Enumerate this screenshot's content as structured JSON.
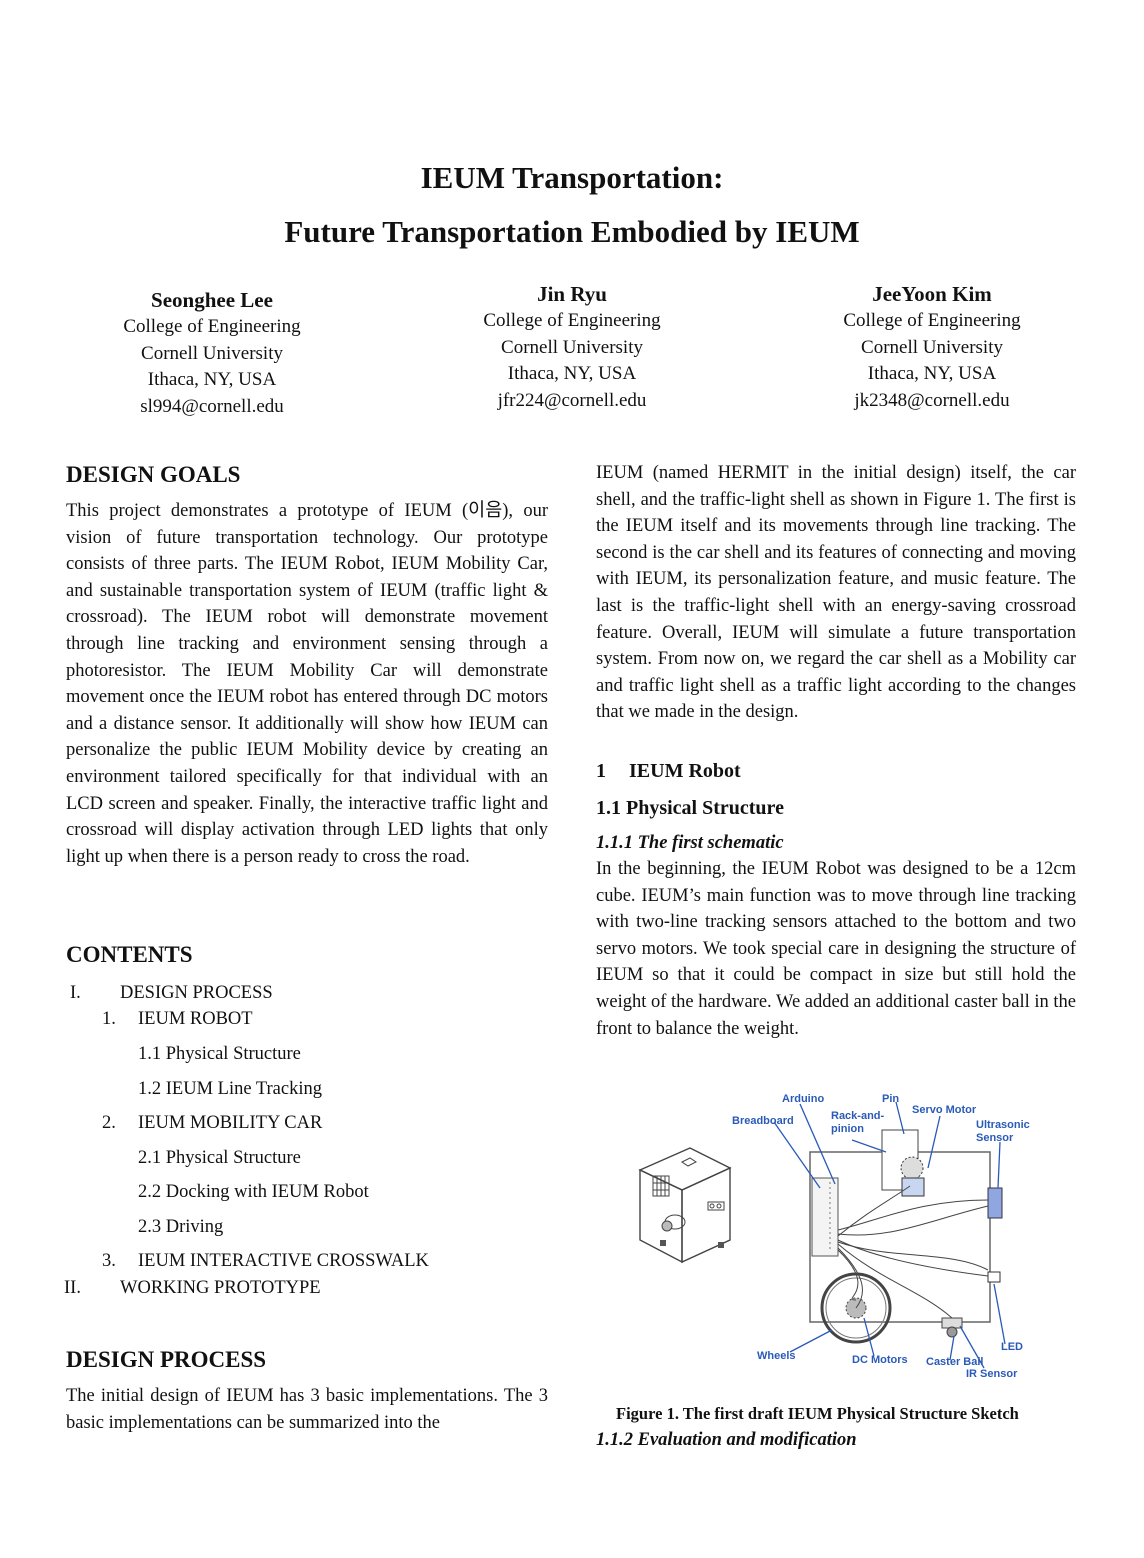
{
  "title": {
    "line1": "IEUM Transportation:",
    "line2": "Future Transportation Embodied by IEUM"
  },
  "authors": [
    {
      "name": "Seonghee Lee",
      "affiliation": "College of Engineering",
      "university": "Cornell University",
      "location": "Ithaca, NY, USA",
      "email": "sl994@cornell.edu"
    },
    {
      "name": "Jin Ryu",
      "affiliation": "College of Engineering",
      "university": "Cornell University",
      "location": "Ithaca, NY, USA",
      "email": "jfr224@cornell.edu"
    },
    {
      "name": "JeeYoon Kim",
      "affiliation": "College of Engineering",
      "university": "Cornell University",
      "location": "Ithaca, NY, USA",
      "email": "jk2348@cornell.edu"
    }
  ],
  "left": {
    "design_goals_heading": "DESIGN GOALS",
    "design_goals_text": "This project demonstrates a prototype of IEUM (이음), our vision of future transportation technology. Our prototype consists of three parts. The IEUM Robot, IEUM Mobility Car, and sustainable transportation system of IEUM (traffic light & crossroad). The IEUM robot will demonstrate movement through line tracking and environment sensing through a photoresistor. The IEUM Mobility Car will demonstrate movement once the IEUM robot has entered through DC motors and a distance sensor. It additionally will show how IEUM can personalize the public IEUM Mobility device by creating an environment tailored specifically for that individual with an LCD screen and speaker. Finally, the interactive traffic light and crossroad will display activation through LED lights that only light up when there is a person ready to cross the road.",
    "contents_heading": "CONTENTS",
    "toc": {
      "i_num": "I.",
      "i_label": "DESIGN PROCESS",
      "one_num": "1.",
      "one_label": "IEUM ROBOT",
      "one_1": "1.1 Physical Structure",
      "one_2": "1.2 IEUM Line Tracking",
      "two_num": "2.",
      "two_label": "IEUM MOBILITY CAR",
      "two_1": "2.1 Physical Structure",
      "two_2": "2.2 Docking with IEUM Robot",
      "two_3": "2.3 Driving",
      "three_num": "3.",
      "three_label": "IEUM INTERACTIVE CROSSWALK",
      "ii_num": "II.",
      "ii_label": "WORKING PROTOTYPE"
    },
    "design_process_heading": "DESIGN PROCESS",
    "design_process_text": "The initial design of IEUM has 3 basic implementations. The 3 basic implementations can be summarized into the"
  },
  "right": {
    "intro_text": "IEUM (named HERMIT in the initial design) itself, the car shell, and the traffic-light shell as shown in Figure 1. The first is the IEUM itself and its movements through line tracking. The second is the car shell and its features of connecting and moving with IEUM, its personalization feature, and music feature. The last is the traffic-light shell with an energy-saving crossroad feature. Overall, IEUM will simulate a future transportation system. From now on, we regard the car shell as a Mobility car and traffic light shell as a traffic light according to the changes that we made in the design.",
    "section1_num": "1",
    "section1_title": "IEUM Robot",
    "sub11": "1.1 Physical Structure",
    "sub111": "1.1.1  The first schematic",
    "sub111_text": "In the beginning, the IEUM Robot was designed to be a 12cm cube. IEUM’s main function was to move through line tracking with two-line tracking sensors attached to the bottom and two servo motors. We took special care in designing the structure of IEUM so that it could be compact in size but still hold the weight of the hardware. We added an additional caster ball in the front to balance the weight.",
    "figure_labels": {
      "arduino": "Arduino",
      "pin": "Pin",
      "breadboard": "Breadboard",
      "rack1": "Rack-and-",
      "rack2": "pinion",
      "servo": "Servo Motor",
      "ultra1": "Ultrasonic",
      "ultra2": "Sensor",
      "wheels": "Wheels",
      "dc": "DC Motors",
      "caster": "Caster Ball",
      "led": "LED",
      "ir": "IR Sensor"
    },
    "figure_caption": "Figure 1. The first draft IEUM Physical Structure Sketch",
    "sub112": "1.1.2  Evaluation and modification"
  }
}
